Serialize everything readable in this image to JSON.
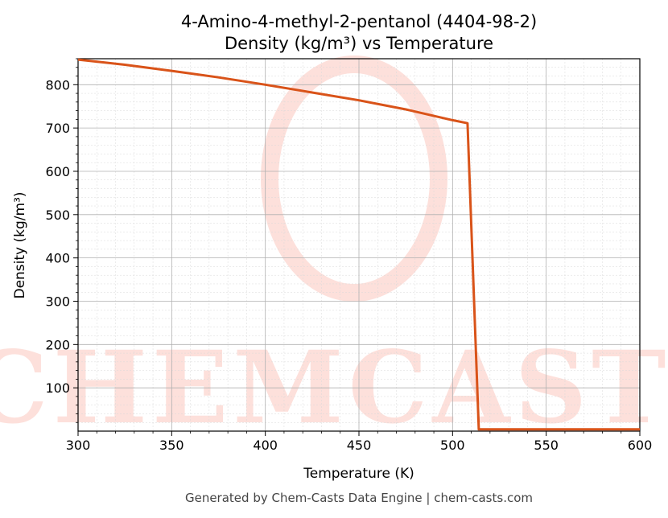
{
  "chart_data": {
    "type": "line",
    "title": "4-Amino-4-methyl-2-pentanol (4404-98-2)",
    "subtitle": "Density (kg/m³) vs Temperature",
    "xlabel": "Temperature (K)",
    "ylabel": "Density (kg/m³)",
    "xlim": [
      300,
      600
    ],
    "ylim": [
      0,
      860
    ],
    "xticks": [
      300,
      350,
      400,
      450,
      500,
      550,
      600
    ],
    "yticks": [
      100,
      200,
      300,
      400,
      500,
      600,
      700,
      800
    ],
    "grid": true,
    "series": [
      {
        "color": "#d95319",
        "x": [
          300,
          325,
          350,
          375,
          400,
          425,
          450,
          475,
          500,
          508,
          514,
          600
        ],
        "y": [
          858,
          846,
          832,
          817,
          800,
          782,
          764,
          743,
          718,
          711,
          4,
          4
        ]
      }
    ]
  },
  "watermark": {
    "text": "CHEMCASTS"
  },
  "footer": "Generated by Chem-Casts Data Engine | chem-casts.com"
}
